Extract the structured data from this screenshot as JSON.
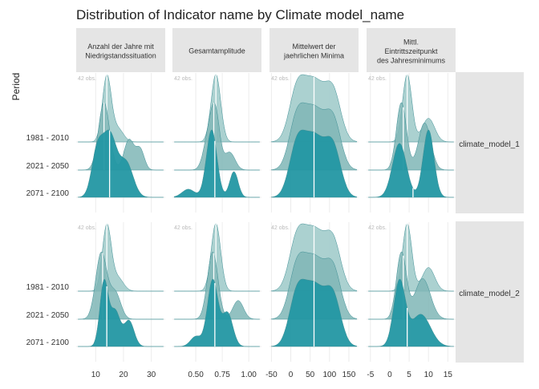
{
  "chart_data": {
    "type": "ridgeline",
    "title": "Distribution of Indicator name by Climate model_name",
    "ylabel": "Period",
    "xlabel": "",
    "grid": true,
    "legend": "none",
    "colors": {
      "top": "#a7cfcd",
      "middle": "#7fb6b6",
      "bottom": "#2397a3",
      "median": "#ffffff",
      "strip": "#e5e5e5"
    },
    "obs_label": "42 obs.",
    "periods": [
      "1981 - 2010",
      "2021 - 2050",
      "2071 - 2100"
    ],
    "columns": [
      {
        "label": "Anzahl der Jahre mit Niedrigstandssituation",
        "xlim": [
          3,
          35
        ],
        "ticks": [
          10,
          20,
          30
        ],
        "tick_labels": [
          "10",
          "20",
          "30"
        ]
      },
      {
        "label": "Gesamtamplitude",
        "xlim": [
          0.28,
          1.12
        ],
        "ticks": [
          0.5,
          0.75,
          1.0
        ],
        "tick_labels": [
          "0.50",
          "0.75",
          "1.00"
        ]
      },
      {
        "label": "Mittelwert der jaehrlichen Minima",
        "xlim": [
          -55,
          175
        ],
        "ticks": [
          -50,
          0,
          50,
          100,
          150
        ],
        "tick_labels": [
          "-50",
          "0",
          "50",
          "100",
          "150"
        ]
      },
      {
        "label": "Mittl. Eintrittszeitpunkt des Jahresminimums",
        "xlim": [
          -6,
          17
        ],
        "ticks": [
          -5,
          0,
          5,
          10,
          15
        ],
        "tick_labels": [
          "-5",
          "0",
          "5",
          "10",
          "15"
        ]
      }
    ],
    "rows": [
      {
        "model": "climate_model_1",
        "panels": [
          {
            "ridges": [
              {
                "period": "1981 - 2010",
                "median": 14,
                "peaks": [
                  [
                    14,
                    1.6,
                    1.0
                  ],
                  [
                    18,
                    2.0,
                    0.2
                  ]
                ]
              },
              {
                "period": "2021 - 2050",
                "median": 13,
                "peaks": [
                  [
                    13,
                    2.0,
                    1.0
                  ],
                  [
                    22,
                    1.8,
                    0.45
                  ],
                  [
                    26,
                    1.5,
                    0.3
                  ]
                ]
              },
              {
                "period": "2071 - 2100",
                "median": 15,
                "peaks": [
                  [
                    10.5,
                    2.0,
                    0.7
                  ],
                  [
                    15,
                    2.5,
                    1.0
                  ],
                  [
                    21,
                    2.5,
                    0.55
                  ]
                ]
              }
            ]
          },
          {
            "ridges": [
              {
                "period": "1981 - 2010",
                "median": 0.69,
                "peaks": [
                  [
                    0.69,
                    0.045,
                    1.0
                  ]
                ]
              },
              {
                "period": "2021 - 2050",
                "median": 0.67,
                "peaks": [
                  [
                    0.63,
                    0.05,
                    0.65
                  ],
                  [
                    0.69,
                    0.04,
                    0.75
                  ],
                  [
                    0.82,
                    0.05,
                    0.3
                  ]
                ]
              },
              {
                "period": "2071 - 2100",
                "median": 0.68,
                "peaks": [
                  [
                    0.43,
                    0.06,
                    0.12
                  ],
                  [
                    0.65,
                    0.05,
                    1.0
                  ],
                  [
                    0.86,
                    0.04,
                    0.38
                  ]
                ]
              }
            ]
          },
          {
            "ridges": [
              {
                "period": "1981 - 2010",
                "median": 60,
                "peaks": [
                  [
                    15,
                    20,
                    0.75
                  ],
                  [
                    60,
                    28,
                    1.0
                  ],
                  [
                    110,
                    20,
                    0.75
                  ]
                ]
              },
              {
                "period": "2021 - 2050",
                "median": 60,
                "peaks": [
                  [
                    15,
                    20,
                    0.75
                  ],
                  [
                    60,
                    28,
                    1.0
                  ],
                  [
                    110,
                    20,
                    0.75
                  ]
                ]
              },
              {
                "period": "2071 - 2100",
                "median": 60,
                "peaks": [
                  [
                    15,
                    20,
                    0.75
                  ],
                  [
                    60,
                    28,
                    1.0
                  ],
                  [
                    110,
                    20,
                    0.75
                  ]
                ]
              }
            ]
          },
          {
            "ridges": [
              {
                "period": "1981 - 2010",
                "median": 4.5,
                "peaks": [
                  [
                    4.5,
                    1.2,
                    1.0
                  ],
                  [
                    10,
                    1.6,
                    0.35
                  ]
                ]
              },
              {
                "period": "2021 - 2050",
                "median": 3.5,
                "peaks": [
                  [
                    3,
                    1.3,
                    1.0
                  ],
                  [
                    9,
                    1.6,
                    0.7
                  ]
                ]
              },
              {
                "period": "2071 - 2100",
                "median": 6,
                "peaks": [
                  [
                    2.5,
                    1.8,
                    0.8
                  ],
                  [
                    10,
                    1.4,
                    1.0
                  ]
                ]
              }
            ]
          }
        ]
      },
      {
        "model": "climate_model_2",
        "panels": [
          {
            "ridges": [
              {
                "period": "1981 - 2010",
                "median": 14,
                "peaks": [
                  [
                    14,
                    1.6,
                    1.0
                  ],
                  [
                    18,
                    2.0,
                    0.2
                  ]
                ]
              },
              {
                "period": "2021 - 2050",
                "median": 12.5,
                "peaks": [
                  [
                    12,
                    2.0,
                    1.0
                  ],
                  [
                    17,
                    2.0,
                    0.4
                  ]
                ]
              },
              {
                "period": "2071 - 2100",
                "median": 14,
                "peaks": [
                  [
                    13,
                    1.5,
                    1.0
                  ],
                  [
                    17,
                    1.8,
                    0.55
                  ],
                  [
                    22,
                    1.8,
                    0.4
                  ]
                ]
              }
            ]
          },
          {
            "ridges": [
              {
                "period": "1981 - 2010",
                "median": 0.69,
                "peaks": [
                  [
                    0.69,
                    0.045,
                    1.0
                  ]
                ]
              },
              {
                "period": "2021 - 2050",
                "median": 0.67,
                "peaks": [
                  [
                    0.66,
                    0.05,
                    0.9
                  ],
                  [
                    0.9,
                    0.05,
                    0.25
                  ]
                ]
              },
              {
                "period": "2071 - 2100",
                "median": 0.68,
                "peaks": [
                  [
                    0.5,
                    0.05,
                    0.15
                  ],
                  [
                    0.66,
                    0.05,
                    1.0
                  ],
                  [
                    0.8,
                    0.05,
                    0.5
                  ]
                ]
              }
            ]
          },
          {
            "ridges": [
              {
                "period": "1981 - 2010",
                "median": 60,
                "peaks": [
                  [
                    15,
                    20,
                    0.75
                  ],
                  [
                    60,
                    28,
                    1.0
                  ],
                  [
                    110,
                    20,
                    0.75
                  ]
                ]
              },
              {
                "period": "2021 - 2050",
                "median": 60,
                "peaks": [
                  [
                    15,
                    20,
                    0.75
                  ],
                  [
                    60,
                    28,
                    1.0
                  ],
                  [
                    110,
                    20,
                    0.75
                  ]
                ]
              },
              {
                "period": "2071 - 2100",
                "median": 60,
                "peaks": [
                  [
                    15,
                    20,
                    0.75
                  ],
                  [
                    60,
                    28,
                    1.0
                  ],
                  [
                    110,
                    20,
                    0.75
                  ]
                ]
              }
            ]
          },
          {
            "ridges": [
              {
                "period": "1981 - 2010",
                "median": 4.5,
                "peaks": [
                  [
                    4.5,
                    1.2,
                    1.0
                  ],
                  [
                    10,
                    1.6,
                    0.35
                  ]
                ]
              },
              {
                "period": "2021 - 2050",
                "median": 3.5,
                "peaks": [
                  [
                    3,
                    1.3,
                    0.9
                  ],
                  [
                    8.5,
                    2.0,
                    0.55
                  ]
                ]
              },
              {
                "period": "2071 - 2100",
                "median": 4.5,
                "peaks": [
                  [
                    2.5,
                    1.5,
                    1.0
                  ],
                  [
                    8,
                    2.5,
                    0.5
                  ]
                ]
              }
            ]
          }
        ]
      }
    ]
  }
}
